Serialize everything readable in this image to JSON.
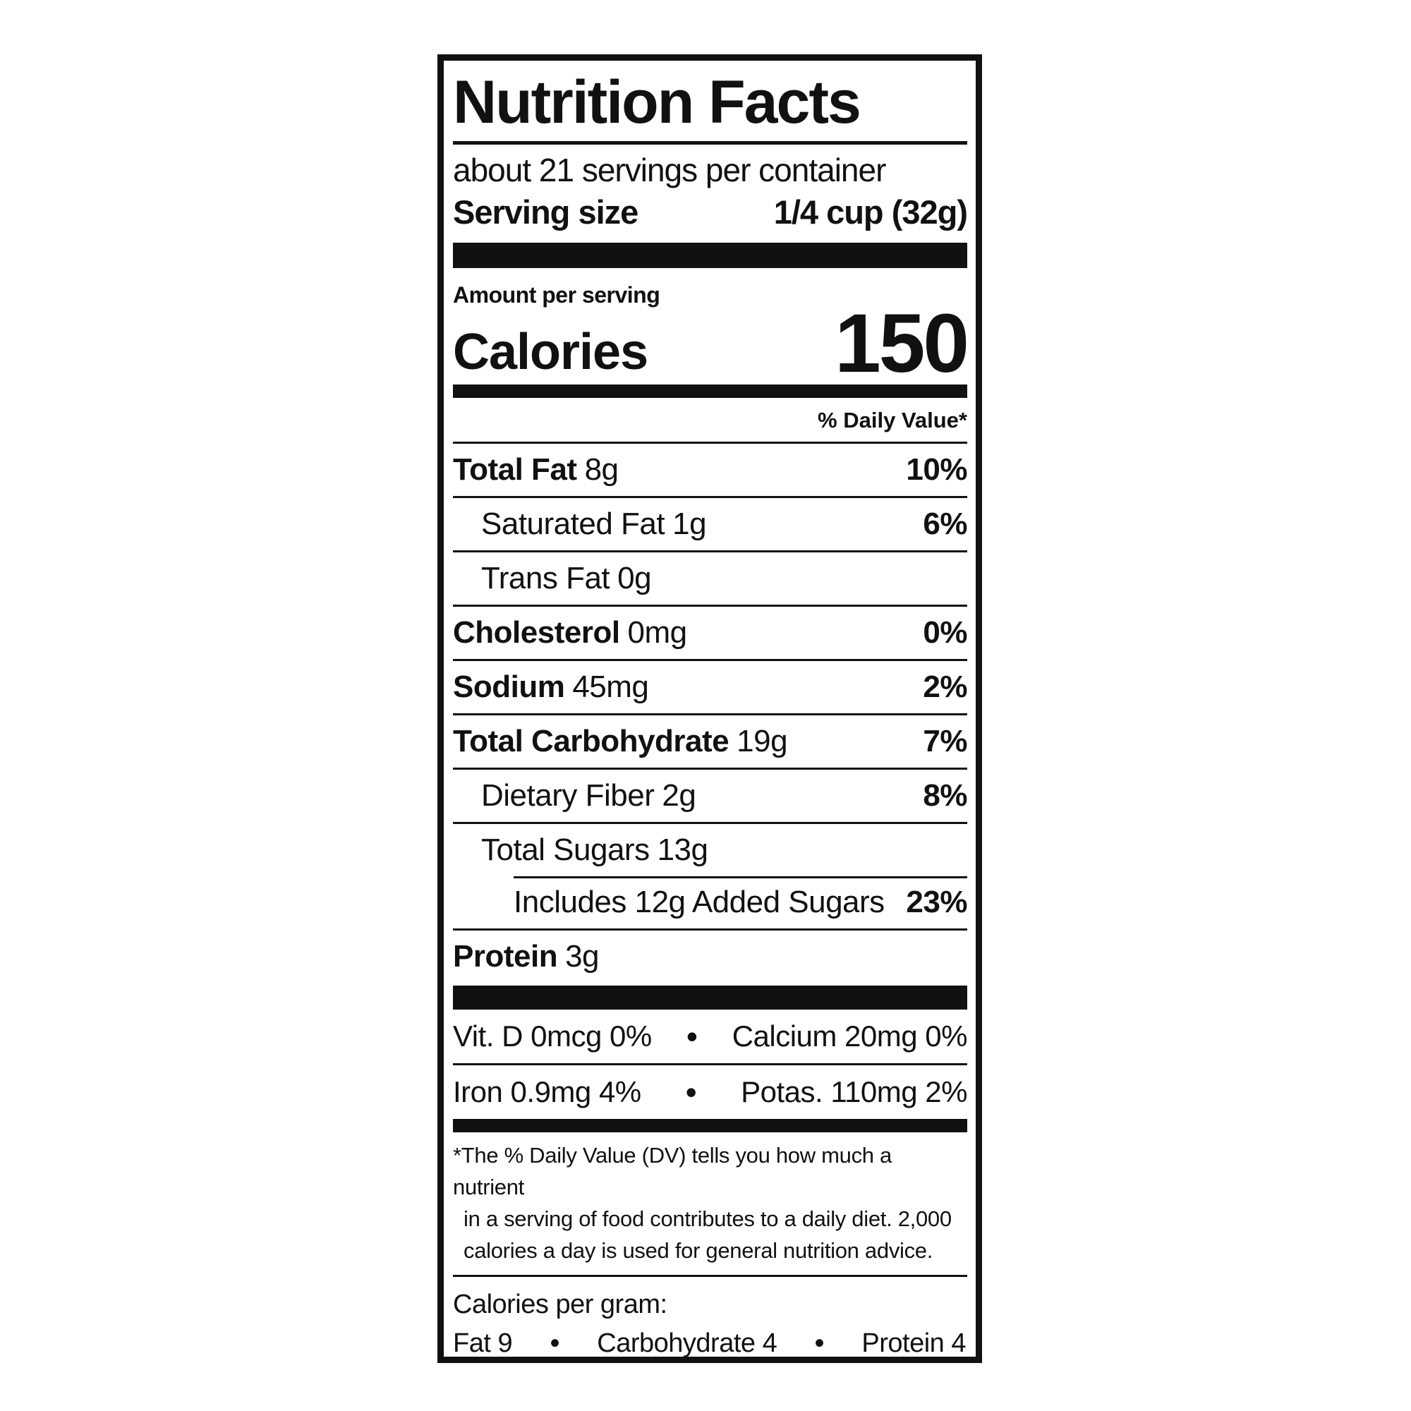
{
  "label": {
    "title": "Nutrition Facts",
    "servings_per_container": "about 21 servings per container",
    "serving_size_label": "Serving size",
    "serving_size_value": "1/4 cup (32g)",
    "amount_per_serving": "Amount per serving",
    "calories_label": "Calories",
    "calories_value": "150",
    "daily_value_header": "% Daily Value*",
    "bullet": "•",
    "nutrients": [
      {
        "name": "Total Fat",
        "amount": "8g",
        "dv": "10%"
      },
      {
        "name": "Saturated Fat",
        "amount": "1g",
        "dv": "6%"
      },
      {
        "name": "Trans Fat",
        "amount": "0g",
        "dv": ""
      },
      {
        "name": "Cholesterol",
        "amount": "0mg",
        "dv": "0%"
      },
      {
        "name": "Sodium",
        "amount": "45mg",
        "dv": "2%"
      },
      {
        "name": "Total Carbohydrate",
        "amount": "19g",
        "dv": "7%"
      },
      {
        "name": "Dietary Fiber",
        "amount": "2g",
        "dv": "8%"
      },
      {
        "name": "Total Sugars",
        "amount": "13g",
        "dv": ""
      },
      {
        "name": "Includes 12g Added Sugars",
        "amount": "",
        "dv": "23%"
      },
      {
        "name": "Protein",
        "amount": "3g",
        "dv": ""
      }
    ],
    "micronutrients": [
      {
        "left": "Vit. D 0mcg 0%",
        "right": "Calcium 20mg 0%"
      },
      {
        "left": "Iron 0.9mg 4%",
        "right": "Potas. 110mg 2%"
      }
    ],
    "footnote_lines": [
      "*The % Daily Value (DV) tells you how much a nutrient",
      "in a serving of food contributes to a daily diet. 2,000",
      "calories a day is used for general nutrition advice."
    ],
    "calories_per_gram_label": "Calories per gram:",
    "calories_per_gram": [
      "Fat 9",
      "Carbohydrate 4",
      "Protein 4"
    ],
    "colors": {
      "ink": "#111111",
      "background": "#ffffff"
    }
  }
}
